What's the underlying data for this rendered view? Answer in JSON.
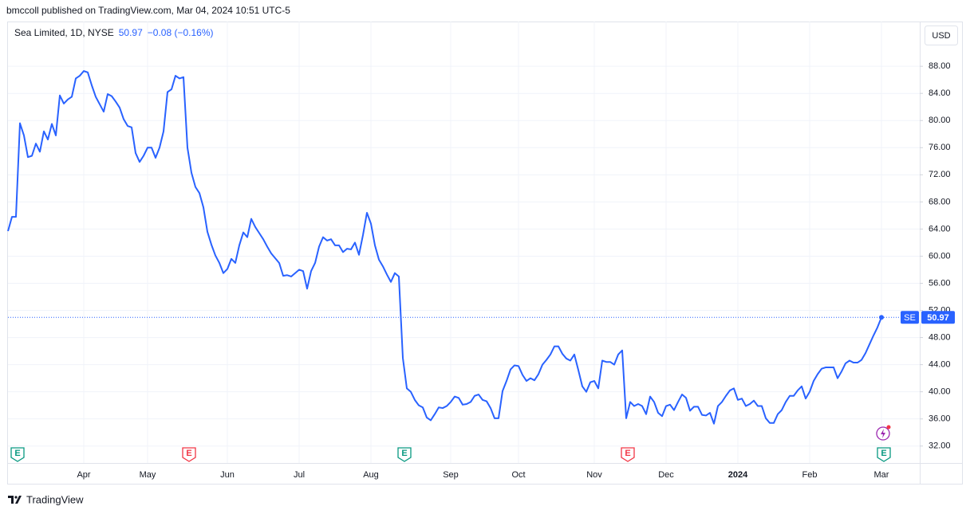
{
  "header": {
    "attribution": "bmccoll published on TradingView.com, Mar 04, 2024 10:51 UTC-5",
    "symbol_info": "Sea Limited, 1D, NYSE",
    "change": "−0.08 (−0.16%)",
    "currency": "USD",
    "earnings_label": "E"
  },
  "footer": {
    "brand": "TradingView"
  },
  "chart_data": {
    "type": "line",
    "categories": [
      null,
      null,
      null,
      null,
      null,
      null,
      null,
      null,
      null,
      null,
      null,
      null,
      null,
      null,
      null,
      null,
      null,
      null,
      null,
      "Apr",
      null,
      null,
      null,
      null,
      null,
      null,
      null,
      null,
      null,
      null,
      null,
      null,
      null,
      null,
      null,
      "May",
      null,
      null,
      null,
      null,
      null,
      null,
      null,
      null,
      null,
      null,
      null,
      null,
      null,
      null,
      null,
      null,
      null,
      null,
      null,
      "Jun",
      null,
      null,
      null,
      null,
      null,
      null,
      null,
      null,
      null,
      null,
      null,
      null,
      null,
      null,
      null,
      null,
      null,
      "Jul",
      null,
      null,
      null,
      null,
      null,
      null,
      null,
      null,
      null,
      null,
      null,
      null,
      null,
      null,
      null,
      null,
      null,
      "Aug",
      null,
      null,
      null,
      null,
      null,
      null,
      null,
      null,
      null,
      null,
      null,
      null,
      null,
      null,
      null,
      null,
      null,
      null,
      null,
      "Sep",
      null,
      null,
      null,
      null,
      null,
      null,
      null,
      null,
      null,
      null,
      null,
      null,
      null,
      null,
      null,
      null,
      "Oct",
      null,
      null,
      null,
      null,
      null,
      null,
      null,
      null,
      null,
      null,
      null,
      null,
      null,
      null,
      null,
      null,
      null,
      null,
      "Nov",
      null,
      null,
      null,
      null,
      null,
      null,
      null,
      null,
      null,
      null,
      null,
      null,
      null,
      null,
      null,
      null,
      null,
      "Dec",
      null,
      null,
      null,
      null,
      null,
      null,
      null,
      null,
      null,
      null,
      null,
      null,
      null,
      null,
      null,
      null,
      null,
      "2024",
      null,
      null,
      null,
      null,
      null,
      null,
      null,
      null,
      null,
      null,
      null,
      null,
      null,
      null,
      null,
      null,
      null,
      "Feb",
      null,
      null,
      null,
      null,
      null,
      null,
      null,
      null,
      null,
      null,
      null,
      null,
      null,
      null,
      null,
      null,
      null,
      "Mar"
    ],
    "series": [
      {
        "name": "SE",
        "color": "#2962ff",
        "values": [
          63.7,
          65.8,
          65.8,
          79.6,
          77.8,
          74.6,
          74.8,
          76.6,
          75.4,
          78.4,
          77.2,
          79.5,
          77.8,
          83.7,
          82.5,
          83.1,
          83.5,
          86.2,
          86.6,
          87.3,
          87.1,
          85.2,
          83.5,
          82.4,
          81.3,
          83.9,
          83.6,
          82.8,
          81.9,
          80.2,
          79.2,
          79.0,
          75.2,
          73.9,
          74.8,
          76.0,
          76.0,
          74.5,
          76.0,
          78.4,
          84.2,
          84.6,
          86.6,
          86.2,
          86.4,
          76.0,
          72.3,
          70.2,
          69.3,
          67.2,
          63.6,
          61.7,
          60.1,
          59.0,
          57.5,
          58.1,
          59.6,
          59.0,
          61.6,
          63.5,
          62.8,
          65.5,
          64.3,
          63.4,
          62.5,
          61.4,
          60.4,
          59.7,
          59.0,
          57.1,
          57.2,
          57.0,
          57.5,
          58.0,
          57.8,
          55.2,
          57.8,
          59.0,
          61.4,
          62.8,
          62.3,
          62.5,
          61.6,
          61.6,
          60.6,
          61.1,
          61.0,
          62.0,
          60.2,
          63.1,
          66.4,
          64.8,
          61.6,
          59.5,
          58.5,
          57.3,
          56.2,
          57.5,
          57.0,
          45.0,
          40.5,
          40.0,
          38.8,
          38.0,
          37.7,
          36.2,
          35.8,
          36.7,
          37.7,
          37.6,
          37.9,
          38.5,
          39.3,
          39.1,
          38.1,
          38.2,
          38.5,
          39.4,
          39.6,
          38.8,
          38.6,
          37.6,
          36.1,
          36.1,
          40.1,
          41.6,
          43.3,
          43.9,
          43.8,
          42.5,
          41.6,
          42.0,
          41.7,
          42.6,
          44.0,
          44.7,
          45.5,
          46.7,
          46.7,
          45.6,
          44.9,
          44.6,
          45.5,
          43.2,
          40.8,
          40.0,
          41.4,
          41.6,
          40.5,
          44.6,
          44.4,
          44.4,
          44.0,
          45.5,
          46.1,
          36.1,
          38.5,
          37.9,
          38.2,
          37.9,
          36.7,
          39.3,
          38.5,
          36.9,
          36.4,
          37.9,
          38.1,
          37.3,
          38.5,
          39.6,
          39.1,
          37.2,
          37.8,
          37.8,
          36.6,
          36.5,
          36.9,
          35.3,
          37.9,
          38.5,
          39.4,
          40.2,
          40.5,
          38.8,
          39.0,
          37.9,
          38.2,
          38.7,
          37.9,
          37.9,
          36.1,
          35.4,
          35.4,
          36.7,
          37.3,
          38.5,
          39.4,
          39.4,
          40.2,
          40.8,
          39.0,
          40.0,
          41.6,
          42.6,
          43.4,
          43.6,
          43.6,
          43.6,
          42.0,
          43.0,
          44.2,
          44.6,
          44.3,
          44.3,
          44.7,
          45.7,
          47.0,
          48.3,
          49.5,
          50.97
        ]
      }
    ],
    "ylim": [
      29.5,
      94.6
    ],
    "yticks": [
      {
        "value": 32,
        "label": "32.00"
      },
      {
        "value": 36,
        "label": "36.00"
      },
      {
        "value": 40,
        "label": "40.00"
      },
      {
        "value": 44,
        "label": "44.00"
      },
      {
        "value": 48,
        "label": "48.00"
      },
      {
        "value": 52,
        "label": "52.00"
      },
      {
        "value": 56,
        "label": "56.00"
      },
      {
        "value": 60,
        "label": "60.00"
      },
      {
        "value": 64,
        "label": "64.00"
      },
      {
        "value": 68,
        "label": "68.00"
      },
      {
        "value": 72,
        "label": "72.00"
      },
      {
        "value": 76,
        "label": "76.00"
      },
      {
        "value": 80,
        "label": "80.00"
      },
      {
        "value": 84,
        "label": "84.00"
      },
      {
        "value": 88,
        "label": "88.00"
      }
    ],
    "grid": true
  }
}
